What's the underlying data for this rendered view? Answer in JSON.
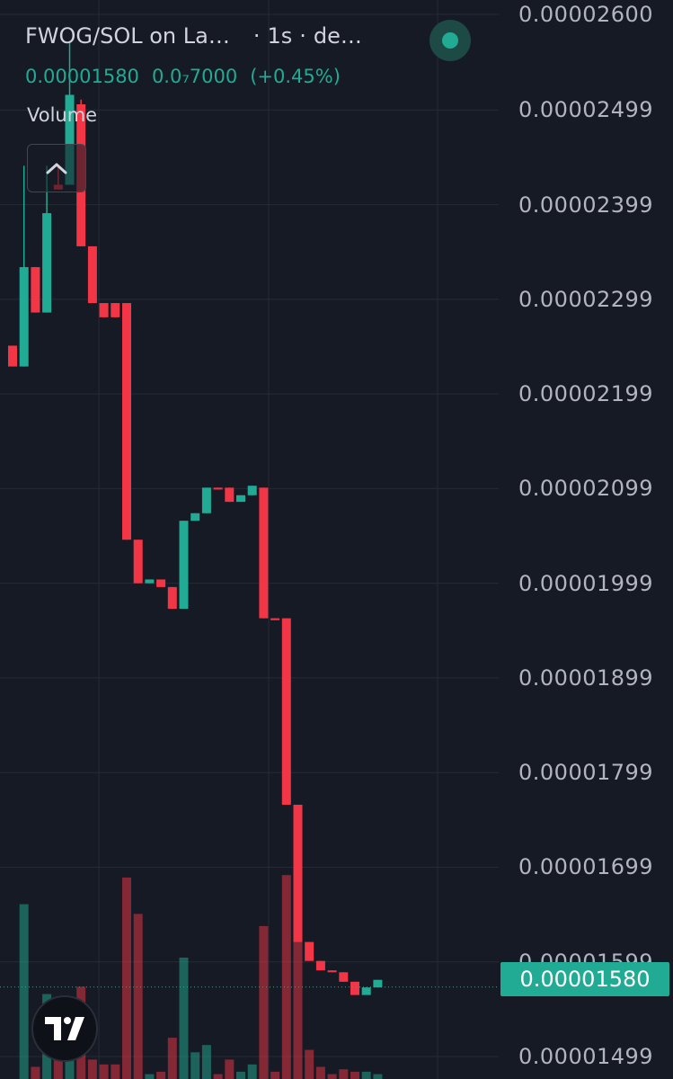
{
  "header": {
    "pair": "FWOG/SOL on La…",
    "sep1": "·",
    "interval": "1s",
    "sep2": "·",
    "source": "de…",
    "last_price": "0.00001580",
    "change_abs": "0.0₇7000",
    "change_pct": "(+0.45%)",
    "volume_label": "Volume"
  },
  "colors": {
    "background": "#161a25",
    "up": "#22ab94",
    "down": "#f23645",
    "grid": "#252a36",
    "axis_text": "#b2b5be"
  },
  "icons": {
    "live": "live-status-dot-icon",
    "collapse": "chevron-up-icon",
    "logo": "tradingview-logo-icon"
  },
  "chart_data": {
    "type": "candlestick",
    "title": "FWOG/SOL",
    "y_axis_labels": [
      "0.00002600",
      "0.00002499",
      "0.00002399",
      "0.00002299",
      "0.00002199",
      "0.00002099",
      "0.00001999",
      "0.00001899",
      "0.00001799",
      "0.00001699",
      "0.00001599",
      "0.00001499"
    ],
    "ylim": [
      1.45e-05,
      2.62e-05
    ],
    "current_price_label": "0.00001580",
    "current_price": 1.58e-05,
    "grid": true,
    "candles": [
      {
        "o": 2.25e-05,
        "h": 2.25e-05,
        "l": 2.228e-05,
        "c": 2.228e-05,
        "v": 0
      },
      {
        "o": 2.228e-05,
        "h": 2.44e-05,
        "l": 2.228e-05,
        "c": 2.333e-05,
        "v": 0.72
      },
      {
        "o": 2.333e-05,
        "h": 2.333e-05,
        "l": 2.285e-05,
        "c": 2.285e-05,
        "v": 0.05
      },
      {
        "o": 2.285e-05,
        "h": 2.44e-05,
        "l": 2.285e-05,
        "c": 2.39e-05,
        "v": 0.35
      },
      {
        "o": 2.42e-05,
        "h": 2.44e-05,
        "l": 2.415e-05,
        "c": 2.415e-05,
        "v": 0.18
      },
      {
        "o": 2.42e-05,
        "h": 2.57e-05,
        "l": 2.42e-05,
        "c": 2.515e-05,
        "v": 0.25
      },
      {
        "o": 2.505e-05,
        "h": 2.51e-05,
        "l": 2.355e-05,
        "c": 2.355e-05,
        "v": 0.38
      },
      {
        "o": 2.355e-05,
        "h": 2.355e-05,
        "l": 2.295e-05,
        "c": 2.295e-05,
        "v": 0.08
      },
      {
        "o": 2.295e-05,
        "h": 2.295e-05,
        "l": 2.28e-05,
        "c": 2.28e-05,
        "v": 0.06
      },
      {
        "o": 2.295e-05,
        "h": 2.295e-05,
        "l": 2.28e-05,
        "c": 2.28e-05,
        "v": 0.06
      },
      {
        "o": 2.295e-05,
        "h": 2.295e-05,
        "l": 2.045e-05,
        "c": 2.045e-05,
        "v": 0.83
      },
      {
        "o": 2.045e-05,
        "h": 2.045e-05,
        "l": 1.999e-05,
        "c": 1.999e-05,
        "v": 0.68
      },
      {
        "o": 1.999e-05,
        "h": 2.003e-05,
        "l": 1.999e-05,
        "c": 2.003e-05,
        "v": 0.02
      },
      {
        "o": 2.003e-05,
        "h": 2.003e-05,
        "l": 1.995e-05,
        "c": 1.995e-05,
        "v": 0.03
      },
      {
        "o": 1.995e-05,
        "h": 1.995e-05,
        "l": 1.972e-05,
        "c": 1.972e-05,
        "v": 0.17
      },
      {
        "o": 1.972e-05,
        "h": 2.065e-05,
        "l": 1.972e-05,
        "c": 2.065e-05,
        "v": 0.5
      },
      {
        "o": 2.065e-05,
        "h": 2.073e-05,
        "l": 2.065e-05,
        "c": 2.073e-05,
        "v": 0.11
      },
      {
        "o": 2.073e-05,
        "h": 2.1e-05,
        "l": 2.073e-05,
        "c": 2.1e-05,
        "v": 0.14
      },
      {
        "o": 2.1e-05,
        "h": 2.1e-05,
        "l": 2.098e-05,
        "c": 2.098e-05,
        "v": 0.02
      },
      {
        "o": 2.1e-05,
        "h": 2.1e-05,
        "l": 2.085e-05,
        "c": 2.085e-05,
        "v": 0.08
      },
      {
        "o": 2.085e-05,
        "h": 2.092e-05,
        "l": 2.085e-05,
        "c": 2.092e-05,
        "v": 0.03
      },
      {
        "o": 2.092e-05,
        "h": 2.102e-05,
        "l": 2.092e-05,
        "c": 2.102e-05,
        "v": 0.06
      },
      {
        "o": 2.1e-05,
        "h": 2.1e-05,
        "l": 1.962e-05,
        "c": 1.962e-05,
        "v": 0.63
      },
      {
        "o": 1.962e-05,
        "h": 1.962e-05,
        "l": 1.96e-05,
        "c": 1.96e-05,
        "v": 0.03
      },
      {
        "o": 1.962e-05,
        "h": 1.962e-05,
        "l": 1.765e-05,
        "c": 1.765e-05,
        "v": 0.84
      },
      {
        "o": 1.765e-05,
        "h": 1.765e-05,
        "l": 1.62e-05,
        "c": 1.62e-05,
        "v": 0.76
      },
      {
        "o": 1.62e-05,
        "h": 1.62e-05,
        "l": 1.6e-05,
        "c": 1.6e-05,
        "v": 0.12
      },
      {
        "o": 1.6e-05,
        "h": 1.6e-05,
        "l": 1.59e-05,
        "c": 1.59e-05,
        "v": 0.05
      },
      {
        "o": 1.59e-05,
        "h": 1.59e-05,
        "l": 1.588e-05,
        "c": 1.588e-05,
        "v": 0.02
      },
      {
        "o": 1.588e-05,
        "h": 1.588e-05,
        "l": 1.578e-05,
        "c": 1.578e-05,
        "v": 0.04
      },
      {
        "o": 1.578e-05,
        "h": 1.578e-05,
        "l": 1.564e-05,
        "c": 1.564e-05,
        "v": 0.03
      },
      {
        "o": 1.564e-05,
        "h": 1.572e-05,
        "l": 1.564e-05,
        "c": 1.572e-05,
        "v": 0.03
      },
      {
        "o": 1.572e-05,
        "h": 1.58e-05,
        "l": 1.572e-05,
        "c": 1.58e-05,
        "v": 0.02
      }
    ]
  }
}
